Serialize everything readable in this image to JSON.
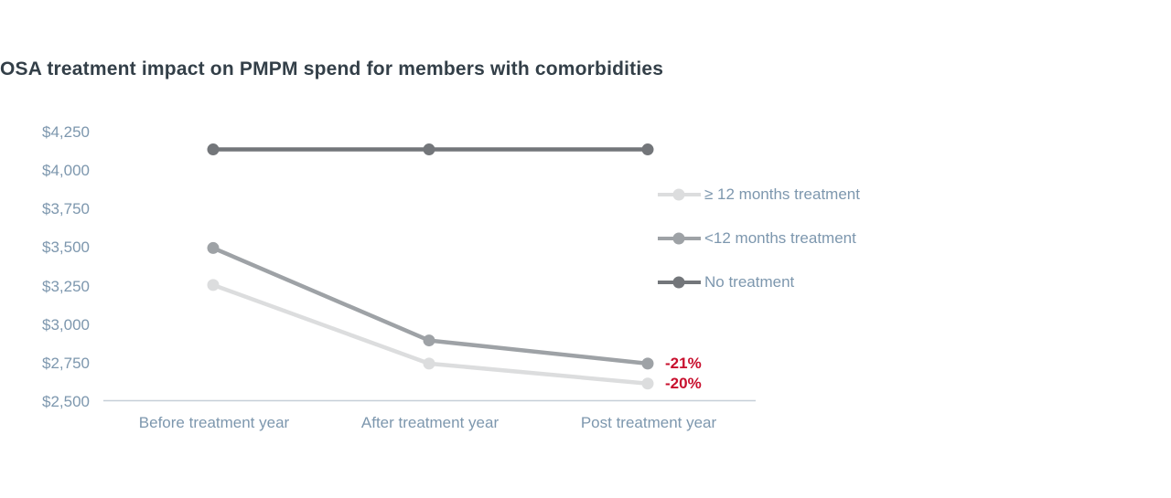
{
  "title": {
    "text": "OSA treatment impact on PMPM spend for members with comorbidities",
    "color": "#333F48"
  },
  "colors": {
    "axis_text": "#7D97AE",
    "axis_line": "#C6CFD8",
    "annotation_red": "#C8102E",
    "background": "#FFFFFF"
  },
  "chart_data": {
    "type": "line",
    "title": "OSA treatment impact on PMPM spend for members with comorbidities",
    "categories": [
      "Before treatment year",
      "After treatment year",
      "Post treatment year"
    ],
    "series": [
      {
        "name": "≥ 12 months treatment",
        "color": "#DCDDDE",
        "values": [
          3260,
          2750,
          2620
        ]
      },
      {
        "name": "<12 months treatment",
        "color": "#9EA2A6",
        "values": [
          3500,
          2900,
          2750
        ]
      },
      {
        "name": "No treatment",
        "color": "#73767A",
        "values": [
          4140,
          4140,
          4140
        ]
      }
    ],
    "ylabel": "",
    "xlabel": "",
    "ylim": [
      2500,
      4250
    ],
    "y_tick_step": 250,
    "y_tick_labels": [
      "$4,250",
      "$4,000",
      "$3,750",
      "$3,500",
      "$3,250",
      "$3,000",
      "$2,750",
      "$2,500"
    ],
    "grid": false,
    "legend_position": "right",
    "marker": "circle",
    "annotations": [
      {
        "text": "-21%",
        "series": "<12 months treatment"
      },
      {
        "text": "-20%",
        "series": "≥ 12 months treatment"
      }
    ]
  }
}
